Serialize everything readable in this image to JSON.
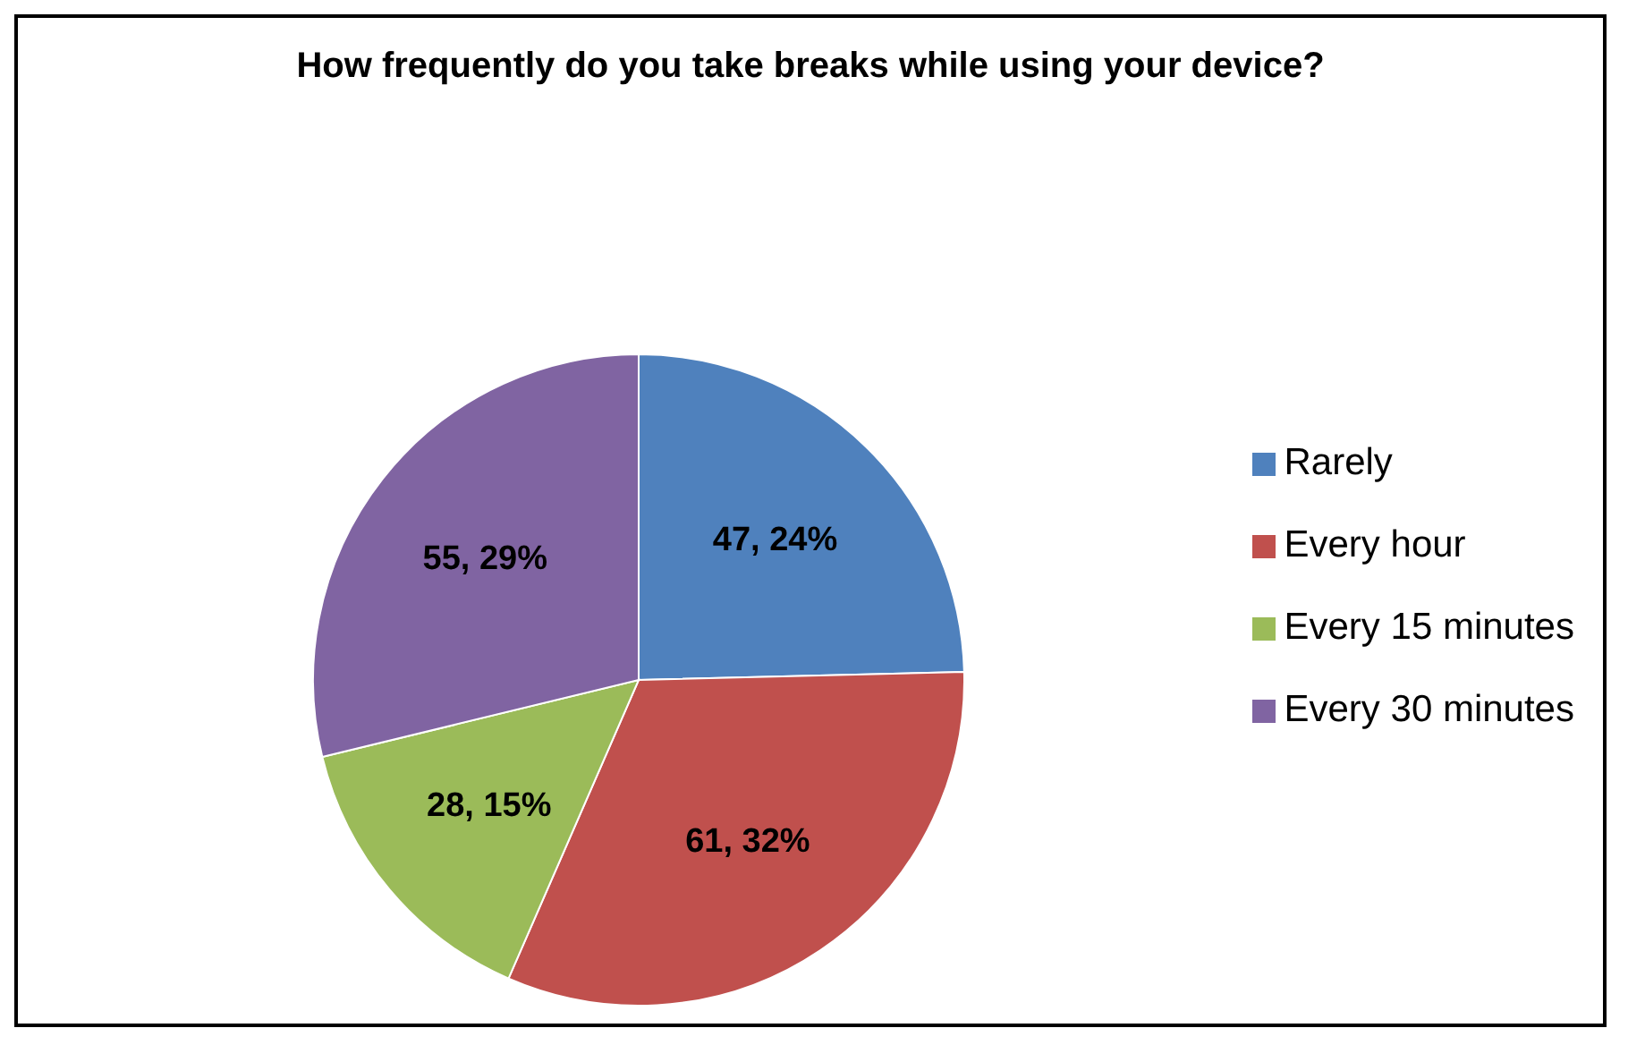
{
  "chart_data": {
    "type": "pie",
    "title": "How frequently do you take breaks while using your device?",
    "categories": [
      "Rarely",
      "Every hour",
      "Every 15 minutes",
      "Every 30 minutes"
    ],
    "values": [
      47,
      61,
      28,
      55
    ],
    "colors": [
      "#4f81bd",
      "#c0504d",
      "#9bbb59",
      "#8064a2"
    ],
    "value_labels": [
      "47, 24%",
      "61, 32%",
      "28, 15%",
      "55, 29%"
    ],
    "legend": "right"
  }
}
